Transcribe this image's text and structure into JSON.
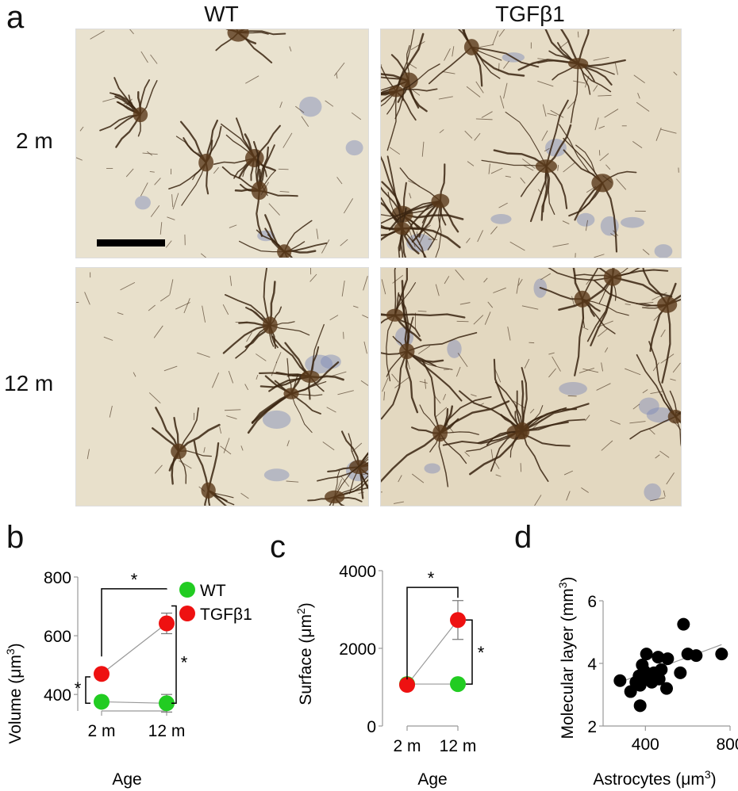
{
  "panel_a": {
    "letter": "a",
    "col_wt": "WT",
    "col_tgf": "TGFβ1",
    "row_2m": "2 m",
    "row_12m": "12 m"
  },
  "panel_b": {
    "letter": "b"
  },
  "panel_c": {
    "letter": "c"
  },
  "panel_d": {
    "letter": "d"
  },
  "colors": {
    "wt": "#22cc22",
    "tgf": "#ee1111",
    "stain": "#3a2410",
    "bg": "#e8e0cc",
    "nucleus": "#7a88b8"
  },
  "chart_data": [
    {
      "type": "line",
      "panel": "b",
      "categories": [
        "2 m",
        "12 m"
      ],
      "xlabel": "Age",
      "ylabel": "Volume (μm³)",
      "ylabel_main": "Volume (μm",
      "ylabel_sup": "3",
      "ylabel_end": ")",
      "ylim": [
        360,
        800
      ],
      "yticks": [
        "400",
        "600",
        "800"
      ],
      "series": [
        {
          "name": "WT",
          "values": [
            375,
            370
          ],
          "errors": [
            12,
            30
          ]
        },
        {
          "name": "TGFβ1",
          "values": [
            470,
            642
          ],
          "errors": [
            18,
            35
          ]
        }
      ],
      "significance": [
        "*",
        "*",
        "*"
      ],
      "legend": "right"
    },
    {
      "type": "line",
      "panel": "c",
      "categories": [
        "2 m",
        "12 m"
      ],
      "xlabel": "Age",
      "ylabel": "Surface (μm²)",
      "ylabel_main": "Surface (μm",
      "ylabel_sup": "2",
      "ylabel_end": ")",
      "ylim": [
        0,
        4000
      ],
      "yticks": [
        "0",
        "2000",
        "4000"
      ],
      "series": [
        {
          "name": "WT",
          "values": [
            1080,
            1080
          ],
          "errors": [
            80,
            40
          ]
        },
        {
          "name": "TGFβ1",
          "values": [
            1060,
            2730
          ],
          "errors": [
            120,
            500
          ]
        }
      ],
      "significance": [
        "*",
        "*"
      ]
    },
    {
      "type": "scatter",
      "panel": "d",
      "xlabel": "Astrocytes (μm³)",
      "xlabel_main": "Astrocytes (μm",
      "xlabel_sup": "3",
      "xlabel_end": ")",
      "ylabel": "Molecular layer (mm³)",
      "ylabel_main": "Molecular layer (mm",
      "ylabel_sup": "3",
      "ylabel_end": ")",
      "xlim": [
        200,
        800
      ],
      "ylim": [
        2,
        6
      ],
      "xticks": [
        "400",
        "800"
      ],
      "yticks": [
        "2",
        "4",
        "6"
      ],
      "points": [
        [
          280,
          3.45
        ],
        [
          330,
          3.1
        ],
        [
          355,
          3.4
        ],
        [
          370,
          3.6
        ],
        [
          375,
          3.3
        ],
        [
          375,
          2.65
        ],
        [
          385,
          3.95
        ],
        [
          390,
          3.5
        ],
        [
          395,
          3.75
        ],
        [
          405,
          4.3
        ],
        [
          430,
          3.4
        ],
        [
          440,
          3.7
        ],
        [
          460,
          4.2
        ],
        [
          465,
          3.5
        ],
        [
          475,
          3.8
        ],
        [
          500,
          3.2
        ],
        [
          505,
          4.15
        ],
        [
          565,
          3.7
        ],
        [
          580,
          5.25
        ],
        [
          600,
          4.3
        ],
        [
          640,
          4.25
        ],
        [
          760,
          4.3
        ]
      ],
      "trend": [
        [
          280,
          3.4
        ],
        [
          760,
          4.6
        ]
      ]
    }
  ]
}
